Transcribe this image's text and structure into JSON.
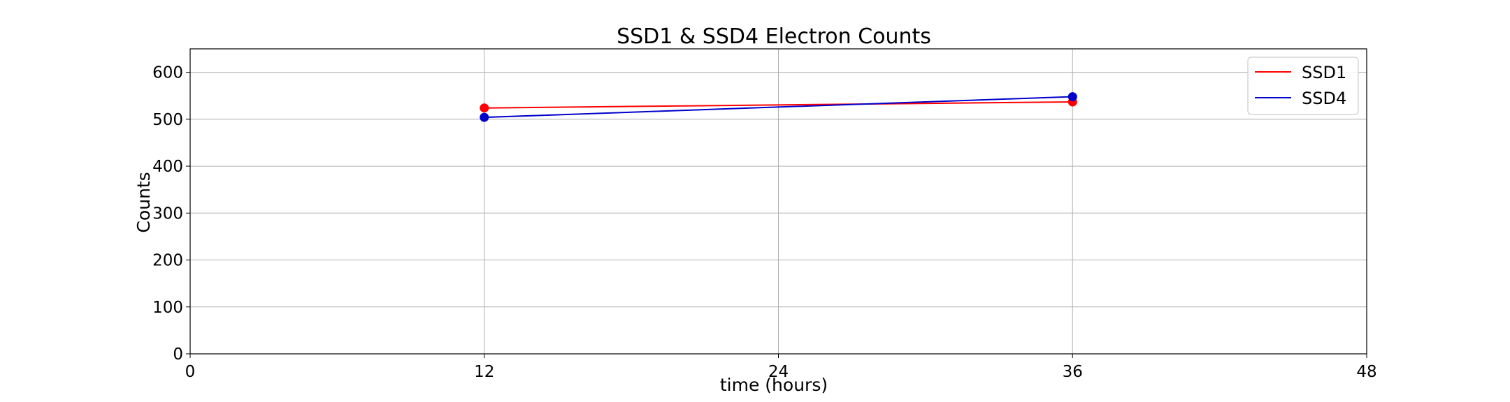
{
  "chart_data": {
    "type": "line",
    "title": "SSD1 & SSD4 Electron Counts",
    "xlabel": "time (hours)",
    "ylabel": "Counts",
    "xlim": [
      0,
      48
    ],
    "ylim": [
      0,
      650
    ],
    "xticks": [
      0,
      12,
      24,
      36,
      48
    ],
    "yticks": [
      0,
      100,
      200,
      300,
      400,
      500,
      600
    ],
    "grid": true,
    "legend": "top-right",
    "series": [
      {
        "name": "SSD1",
        "color": "#ff0000",
        "x": [
          12,
          36
        ],
        "y": [
          524,
          537
        ]
      },
      {
        "name": "SSD4",
        "color": "#0000cc",
        "x": [
          12,
          36
        ],
        "y": [
          504,
          548
        ]
      }
    ]
  }
}
